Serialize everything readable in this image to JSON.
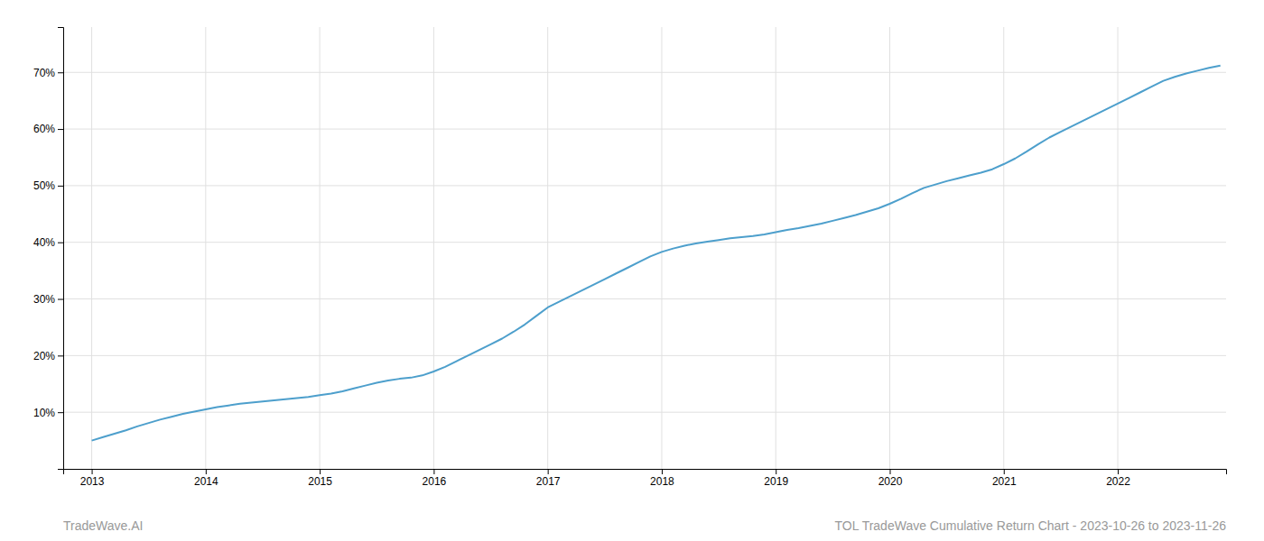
{
  "chart_data": {
    "type": "line",
    "title": "TOL TradeWave Cumulative Return Chart - 2023-10-26 to 2023-11-26",
    "annotations": [
      "TradeWave.AI"
    ],
    "x": [
      2013.0,
      2013.1,
      2013.2,
      2013.3,
      2013.4,
      2013.5,
      2013.6,
      2013.7,
      2013.8,
      2013.9,
      2014.0,
      2014.1,
      2014.2,
      2014.3,
      2014.4,
      2014.5,
      2014.6,
      2014.7,
      2014.8,
      2014.9,
      2015.0,
      2015.1,
      2015.2,
      2015.3,
      2015.4,
      2015.5,
      2015.6,
      2015.7,
      2015.8,
      2015.9,
      2016.0,
      2016.1,
      2016.2,
      2016.3,
      2016.4,
      2016.5,
      2016.6,
      2016.7,
      2016.8,
      2016.9,
      2017.0,
      2017.1,
      2017.2,
      2017.3,
      2017.4,
      2017.5,
      2017.6,
      2017.7,
      2017.8,
      2017.9,
      2018.0,
      2018.1,
      2018.2,
      2018.3,
      2018.4,
      2018.5,
      2018.6,
      2018.7,
      2018.8,
      2018.9,
      2019.0,
      2019.1,
      2019.2,
      2019.3,
      2019.4,
      2019.5,
      2019.6,
      2019.7,
      2019.8,
      2019.9,
      2020.0,
      2020.1,
      2020.2,
      2020.3,
      2020.4,
      2020.5,
      2020.6,
      2020.7,
      2020.8,
      2020.9,
      2021.0,
      2021.1,
      2021.2,
      2021.3,
      2021.4,
      2021.5,
      2021.6,
      2021.7,
      2021.8,
      2021.9,
      2022.0,
      2022.1,
      2022.2,
      2022.3,
      2022.4,
      2022.5,
      2022.6,
      2022.7,
      2022.8,
      2022.9
    ],
    "values": [
      5.0,
      5.6,
      6.2,
      6.8,
      7.5,
      8.1,
      8.7,
      9.2,
      9.7,
      10.1,
      10.5,
      10.9,
      11.2,
      11.5,
      11.7,
      11.9,
      12.1,
      12.3,
      12.5,
      12.7,
      13.0,
      13.3,
      13.7,
      14.2,
      14.7,
      15.2,
      15.6,
      15.9,
      16.1,
      16.5,
      17.2,
      18.0,
      19.0,
      20.0,
      21.0,
      22.0,
      23.0,
      24.2,
      25.5,
      27.0,
      28.5,
      29.5,
      30.5,
      31.5,
      32.5,
      33.5,
      34.5,
      35.5,
      36.5,
      37.5,
      38.3,
      38.9,
      39.4,
      39.8,
      40.1,
      40.4,
      40.7,
      40.9,
      41.1,
      41.4,
      41.8,
      42.2,
      42.5,
      42.9,
      43.3,
      43.8,
      44.3,
      44.8,
      45.4,
      46.0,
      46.8,
      47.7,
      48.7,
      49.6,
      50.2,
      50.8,
      51.3,
      51.8,
      52.3,
      52.9,
      53.8,
      54.8,
      56.0,
      57.3,
      58.5,
      59.5,
      60.5,
      61.5,
      62.5,
      63.5,
      64.5,
      65.5,
      66.5,
      67.5,
      68.5,
      69.2,
      69.8,
      70.3,
      70.8,
      71.2
    ],
    "color": "#4d9fcc",
    "xlim": [
      2012.75,
      2022.95
    ],
    "xticks": [
      2013,
      2014,
      2015,
      2016,
      2017,
      2018,
      2019,
      2020,
      2021,
      2022
    ],
    "ylim": [
      0,
      78
    ],
    "yticks": [
      {
        "value": 10,
        "label": "10%"
      },
      {
        "value": 20,
        "label": "20%"
      },
      {
        "value": 30,
        "label": "30%"
      },
      {
        "value": 40,
        "label": "40%"
      },
      {
        "value": 50,
        "label": "50%"
      },
      {
        "value": 60,
        "label": "60%"
      },
      {
        "value": 70,
        "label": "70%"
      }
    ],
    "grid": true
  }
}
